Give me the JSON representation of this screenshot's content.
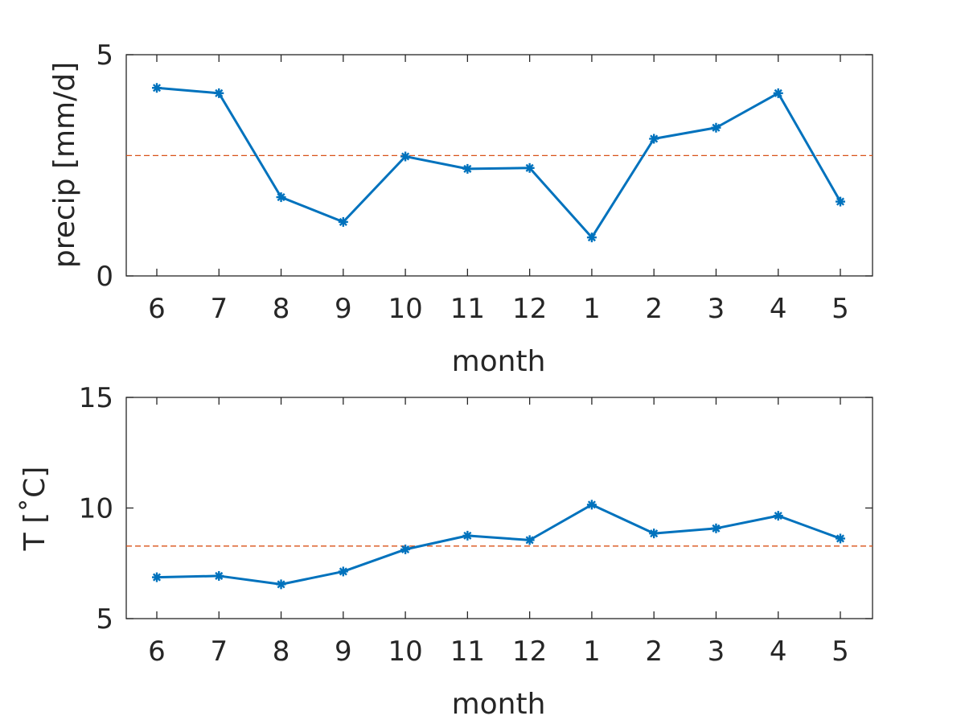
{
  "chart_data": [
    {
      "type": "line",
      "categories": [
        "6",
        "7",
        "8",
        "9",
        "10",
        "11",
        "12",
        "1",
        "2",
        "3",
        "4",
        "5"
      ],
      "series": [
        {
          "values": [
            4.25,
            4.13,
            1.78,
            1.22,
            2.7,
            2.42,
            2.44,
            0.87,
            3.1,
            3.35,
            4.13,
            1.68
          ],
          "color": "#0072BD",
          "marker": "asterisk"
        }
      ],
      "reference_line": {
        "value": 2.72,
        "color": "#D95319",
        "style": "dashed"
      },
      "xlabel": "month",
      "ylabel": "precip [mm/d]",
      "ylim": [
        0,
        5
      ],
      "yticks": [
        "0",
        "5"
      ],
      "grid": false
    },
    {
      "type": "line",
      "categories": [
        "6",
        "7",
        "8",
        "9",
        "10",
        "11",
        "12",
        "1",
        "2",
        "3",
        "4",
        "5"
      ],
      "series": [
        {
          "values": [
            6.87,
            6.93,
            6.55,
            7.13,
            8.13,
            8.75,
            8.55,
            10.15,
            8.85,
            9.08,
            9.65,
            8.62
          ],
          "color": "#0072BD",
          "marker": "asterisk"
        }
      ],
      "reference_line": {
        "value": 8.28,
        "color": "#D95319",
        "style": "dashed"
      },
      "xlabel": "month",
      "ylabel": "T [˚C]",
      "ylim": [
        5,
        15
      ],
      "yticks": [
        "5",
        "10",
        "15"
      ],
      "grid": false
    }
  ]
}
